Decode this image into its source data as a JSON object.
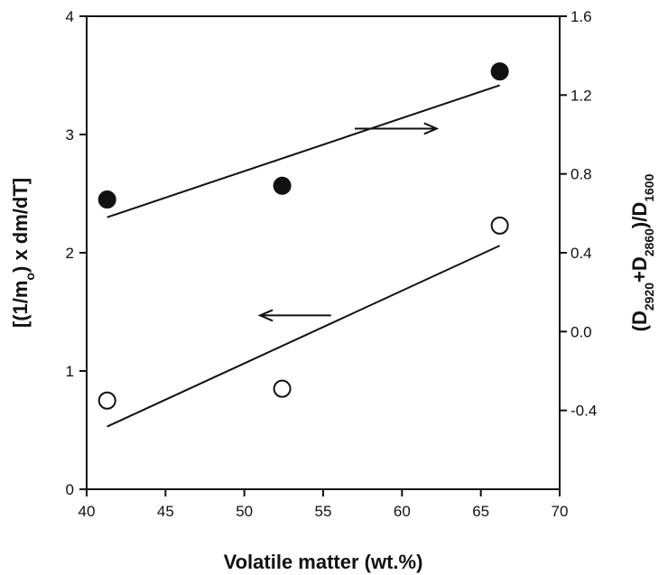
{
  "chart_data": {
    "type": "scatter",
    "xlabel": "Volatile matter (wt.%)",
    "ylabel_left": {
      "parts": [
        {
          "text": "[(1/m",
          "sub": false
        },
        {
          "text": "o",
          "sub": true
        },
        {
          "text": ") x dm/dT]",
          "sub": false
        }
      ]
    },
    "ylabel_right": {
      "parts": [
        {
          "text": "(D",
          "sub": false
        },
        {
          "text": "2920",
          "sub": true
        },
        {
          "text": "+D",
          "sub": false
        },
        {
          "text": "2860",
          "sub": true
        },
        {
          "text": ")/D",
          "sub": false
        },
        {
          "text": "1600",
          "sub": true
        }
      ]
    },
    "x_ticks": [
      "40",
      "45",
      "50",
      "55",
      "60",
      "65",
      "70"
    ],
    "x_range": [
      40,
      70
    ],
    "y_left_ticks": [
      "0",
      "1",
      "2",
      "3",
      "4"
    ],
    "y_left_range": [
      0,
      4
    ],
    "y_right_ticks": [
      "-0.4",
      "0.0",
      "0.4",
      "0.8",
      "1.2",
      "1.6"
    ],
    "y_right_range": [
      -0.8,
      1.6
    ],
    "grid": false,
    "series": [
      {
        "marker": "open-circle",
        "axis": "left",
        "points": [
          [
            41.3,
            0.75
          ],
          [
            52.4,
            0.85
          ],
          [
            66.2,
            2.23
          ]
        ],
        "fit": [
          [
            41.3,
            0.53
          ],
          [
            66.2,
            2.06
          ]
        ],
        "arrow_direction": "left",
        "arrow": [
          [
            55.5,
            1.47
          ],
          [
            51.0,
            1.47
          ]
        ]
      },
      {
        "marker": "filled-circle",
        "axis": "right",
        "points": [
          [
            41.3,
            0.67
          ],
          [
            52.4,
            0.74
          ],
          [
            66.2,
            1.32
          ]
        ],
        "fit": [
          [
            41.3,
            0.58
          ],
          [
            66.2,
            1.25
          ]
        ],
        "arrow_direction": "right",
        "arrow": [
          [
            57.0,
            1.03
          ],
          [
            62.2,
            1.03
          ]
        ]
      }
    ]
  }
}
